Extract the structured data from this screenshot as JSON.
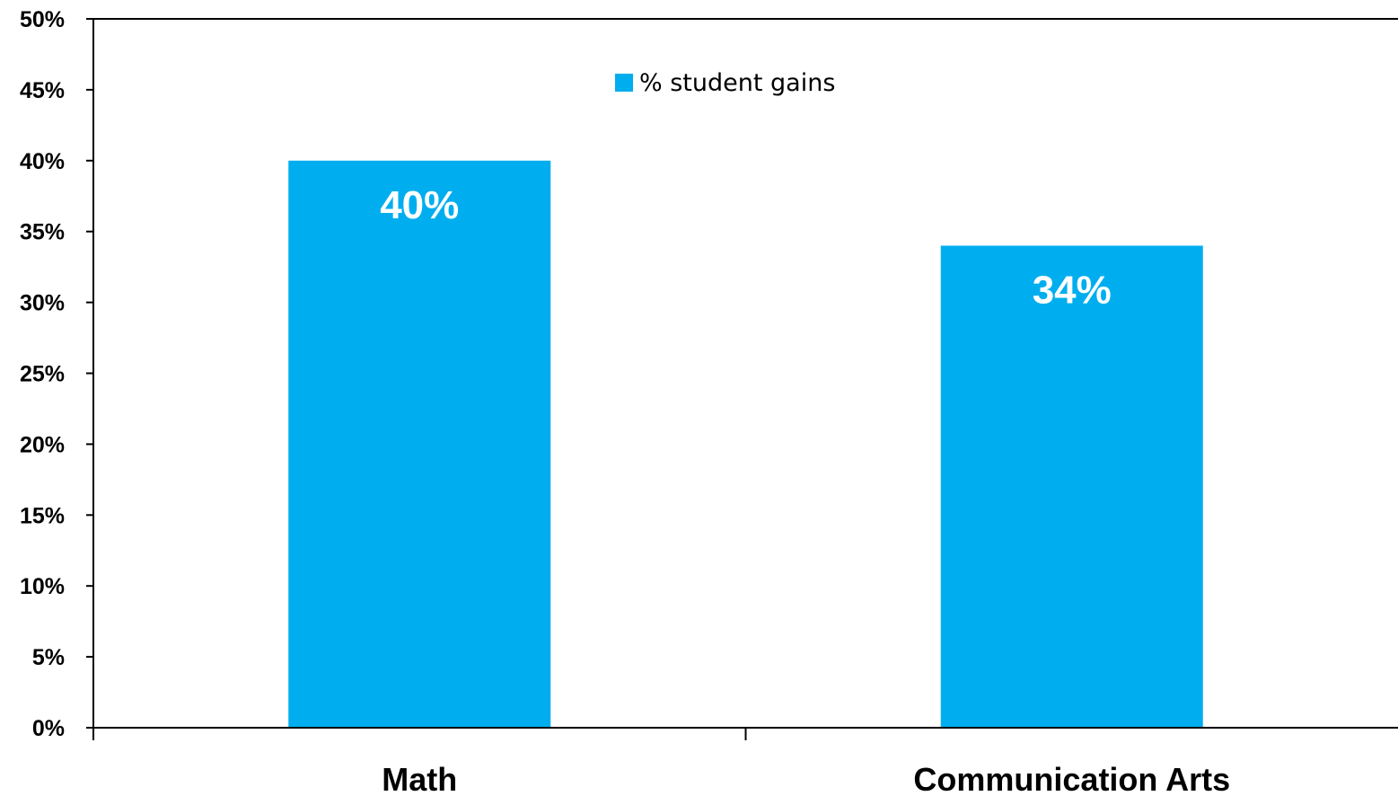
{
  "chart_data": {
    "type": "bar",
    "categories": [
      "Math",
      "Communication Arts"
    ],
    "series": [
      {
        "name": "% student gains",
        "values": [
          40,
          34
        ],
        "color": "#00AEEF"
      }
    ],
    "data_labels": [
      "40%",
      "34%"
    ],
    "ylim": [
      0,
      50
    ],
    "y_ticks": [
      0,
      5,
      10,
      15,
      20,
      25,
      30,
      35,
      40,
      45,
      50
    ],
    "y_tick_labels": [
      "0%",
      "5%",
      "10%",
      "15%",
      "20%",
      "25%",
      "30%",
      "35%",
      "40%",
      "45%",
      "50%"
    ],
    "grid": false,
    "legend_position": "top-center",
    "title": "",
    "xlabel": "",
    "ylabel": ""
  }
}
